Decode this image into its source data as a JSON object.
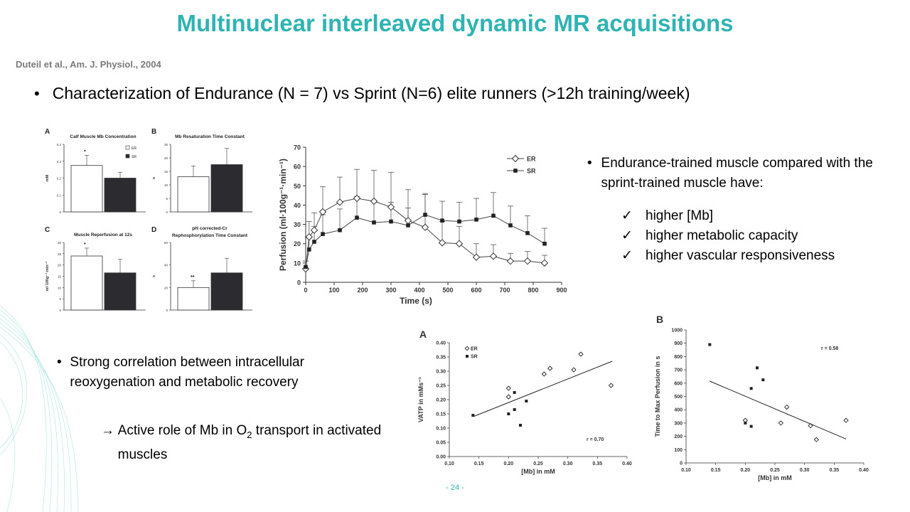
{
  "title": "Multinuclear interleaved dynamic MR acquisitions",
  "citation": "Duteil et al., Am. J. Physiol., 2004",
  "bullet1": "Characterization of Endurance (N = 7) vs Sprint (N=6) elite runners (>12h training/week)",
  "right_bullet": {
    "lead": "Endurance-trained muscle compared with the sprint-trained muscle have:",
    "checks": [
      "higher [Mb]",
      "higher metabolic capacity",
      "higher vascular responsiveness"
    ]
  },
  "bullet2": "Strong correlation between intracellular reoxygenation and metabolic recovery",
  "bullet3": {
    "arrow": "→",
    "pre": "Active role of Mb in O",
    "sub": "2",
    "post": " transport in activated muscles"
  },
  "page_number": "- 24 -",
  "colors": {
    "title": "#2fb3b3",
    "bar_sr": "#2b2b30",
    "bar_er": "#ffffff"
  },
  "chart_data": [
    {
      "type": "bar",
      "panel": "A",
      "title": "Calf Muscle Mb Concentration",
      "ylabel": "mM",
      "categories": [
        "ER",
        "SR"
      ],
      "values": [
        0.275,
        0.2
      ],
      "errors": [
        0.06,
        0.035
      ],
      "ylim": [
        0,
        0.4
      ],
      "yticks": [
        "0",
        "0.1",
        "0.2",
        "0.3",
        "0.4"
      ],
      "sig": "*",
      "legend": [
        "ER",
        "SR"
      ]
    },
    {
      "type": "bar",
      "panel": "B",
      "title": "Mb Resaturation Time Constant",
      "ylabel": "s",
      "categories": [
        "ER",
        "SR"
      ],
      "values": [
        13,
        17.5
      ],
      "errors": [
        4,
        6
      ],
      "ylim": [
        0,
        25
      ],
      "yticks": [
        "0",
        "5",
        "10",
        "15",
        "20",
        "25"
      ]
    },
    {
      "type": "bar",
      "panel": "C",
      "title": "Muscle Reperfusion at 12s",
      "ylabel": "ml·100g⁻¹·min⁻¹",
      "categories": [
        "ER",
        "SR"
      ],
      "values": [
        24,
        16.5
      ],
      "errors": [
        3.5,
        6
      ],
      "ylim": [
        0,
        30
      ],
      "yticks": [
        "0",
        "5",
        "10",
        "15",
        "20",
        "25",
        "30"
      ],
      "sig": "*"
    },
    {
      "type": "bar",
      "panel": "D",
      "title": "pH corrected-Cr Rephosphorylation Time Constant",
      "ylabel": "s",
      "categories": [
        "ER",
        "SR"
      ],
      "values": [
        20,
        33
      ],
      "errors": [
        6,
        13
      ],
      "ylim": [
        0,
        60
      ],
      "yticks": [
        "0",
        "20",
        "40",
        "60"
      ],
      "sig": "**"
    },
    {
      "type": "line",
      "xlabel": "Time (s)",
      "ylabel": "Perfusion (ml·100g⁻¹·min⁻¹)",
      "xlim": [
        0,
        900
      ],
      "ylim": [
        0,
        70
      ],
      "xticks": [
        "0",
        "100",
        "200",
        "300",
        "400",
        "500",
        "600",
        "700",
        "800",
        "900"
      ],
      "yticks": [
        "0",
        "10",
        "20",
        "30",
        "40",
        "50",
        "60",
        "70"
      ],
      "legend": [
        "ER",
        "SR"
      ],
      "series": [
        {
          "name": "ER",
          "marker": "diamond",
          "x": [
            0,
            12,
            30,
            60,
            120,
            180,
            240,
            300,
            360,
            420,
            480,
            540,
            600,
            660,
            720,
            780,
            840
          ],
          "y": [
            7,
            23.5,
            27,
            36.5,
            41.5,
            43.5,
            42,
            39,
            32,
            28.5,
            20.5,
            20,
            13,
            13.5,
            11,
            11,
            10
          ],
          "err": [
            4,
            8,
            9,
            13,
            13,
            15,
            16,
            18,
            16,
            17,
            11,
            9,
            7,
            6,
            4,
            5,
            4
          ]
        },
        {
          "name": "SR",
          "marker": "square",
          "x": [
            0,
            12,
            30,
            60,
            120,
            180,
            240,
            300,
            360,
            420,
            480,
            540,
            600,
            660,
            720,
            780,
            840
          ],
          "y": [
            8,
            17,
            21,
            25,
            27,
            33.5,
            31,
            31.5,
            29.5,
            35,
            32,
            31.5,
            32.5,
            34.5,
            29.5,
            25.5,
            20
          ],
          "err": [
            3,
            6,
            8,
            10,
            11,
            11,
            11,
            10,
            9,
            11,
            10,
            10,
            11,
            12,
            10,
            9,
            8
          ]
        }
      ]
    },
    {
      "type": "scatter",
      "panel": "A",
      "xlabel": "[Mb] in mM",
      "ylabel": "VATP in mMs⁻¹",
      "xlim": [
        0.1,
        0.4
      ],
      "ylim": [
        0,
        0.4
      ],
      "xticks": [
        "0.10",
        "0.15",
        "0.20",
        "0.25",
        "0.30",
        "0.35",
        "0.40"
      ],
      "yticks": [
        "0.00",
        "0.05",
        "0.10",
        "0.15",
        "0.20",
        "0.25",
        "0.30",
        "0.35",
        "0.40"
      ],
      "annotation": "r = 0.70",
      "legend": [
        "ER",
        "SR"
      ],
      "series": [
        {
          "name": "ER",
          "marker": "diamond",
          "points": [
            [
              0.2,
              0.24
            ],
            [
              0.2,
              0.21
            ],
            [
              0.26,
              0.29
            ],
            [
              0.27,
              0.31
            ],
            [
              0.31,
              0.305
            ],
            [
              0.322,
              0.36
            ],
            [
              0.373,
              0.25
            ]
          ]
        },
        {
          "name": "SR",
          "marker": "square",
          "points": [
            [
              0.14,
              0.145
            ],
            [
              0.2,
              0.15
            ],
            [
              0.21,
              0.225
            ],
            [
              0.21,
              0.165
            ],
            [
              0.22,
              0.11
            ],
            [
              0.23,
              0.195
            ]
          ]
        }
      ],
      "fit": [
        [
          0.14,
          0.14
        ],
        [
          0.375,
          0.335
        ]
      ]
    },
    {
      "type": "scatter",
      "panel": "B",
      "xlabel": "[Mb] in mM",
      "ylabel": "Time to Max Perfusion in s",
      "xlim": [
        0.1,
        0.4
      ],
      "ylim": [
        0,
        1000
      ],
      "xticks": [
        "0.10",
        "0.15",
        "0.20",
        "0.25",
        "0.30",
        "0.35",
        "0.40"
      ],
      "yticks": [
        "0",
        "100",
        "200",
        "300",
        "400",
        "500",
        "600",
        "700",
        "800",
        "900",
        "1000"
      ],
      "annotation": "r = 0.58",
      "series": [
        {
          "name": "ER",
          "marker": "diamond",
          "points": [
            [
              0.2,
              320
            ],
            [
              0.26,
              300
            ],
            [
              0.27,
              420
            ],
            [
              0.31,
              280
            ],
            [
              0.32,
              175
            ],
            [
              0.37,
              320
            ]
          ]
        },
        {
          "name": "SR",
          "marker": "square",
          "points": [
            [
              0.14,
              890
            ],
            [
              0.2,
              300
            ],
            [
              0.21,
              560
            ],
            [
              0.21,
              275
            ],
            [
              0.22,
              715
            ],
            [
              0.23,
              625
            ]
          ]
        }
      ],
      "fit": [
        [
          0.14,
          615
        ],
        [
          0.37,
          180
        ]
      ]
    }
  ]
}
